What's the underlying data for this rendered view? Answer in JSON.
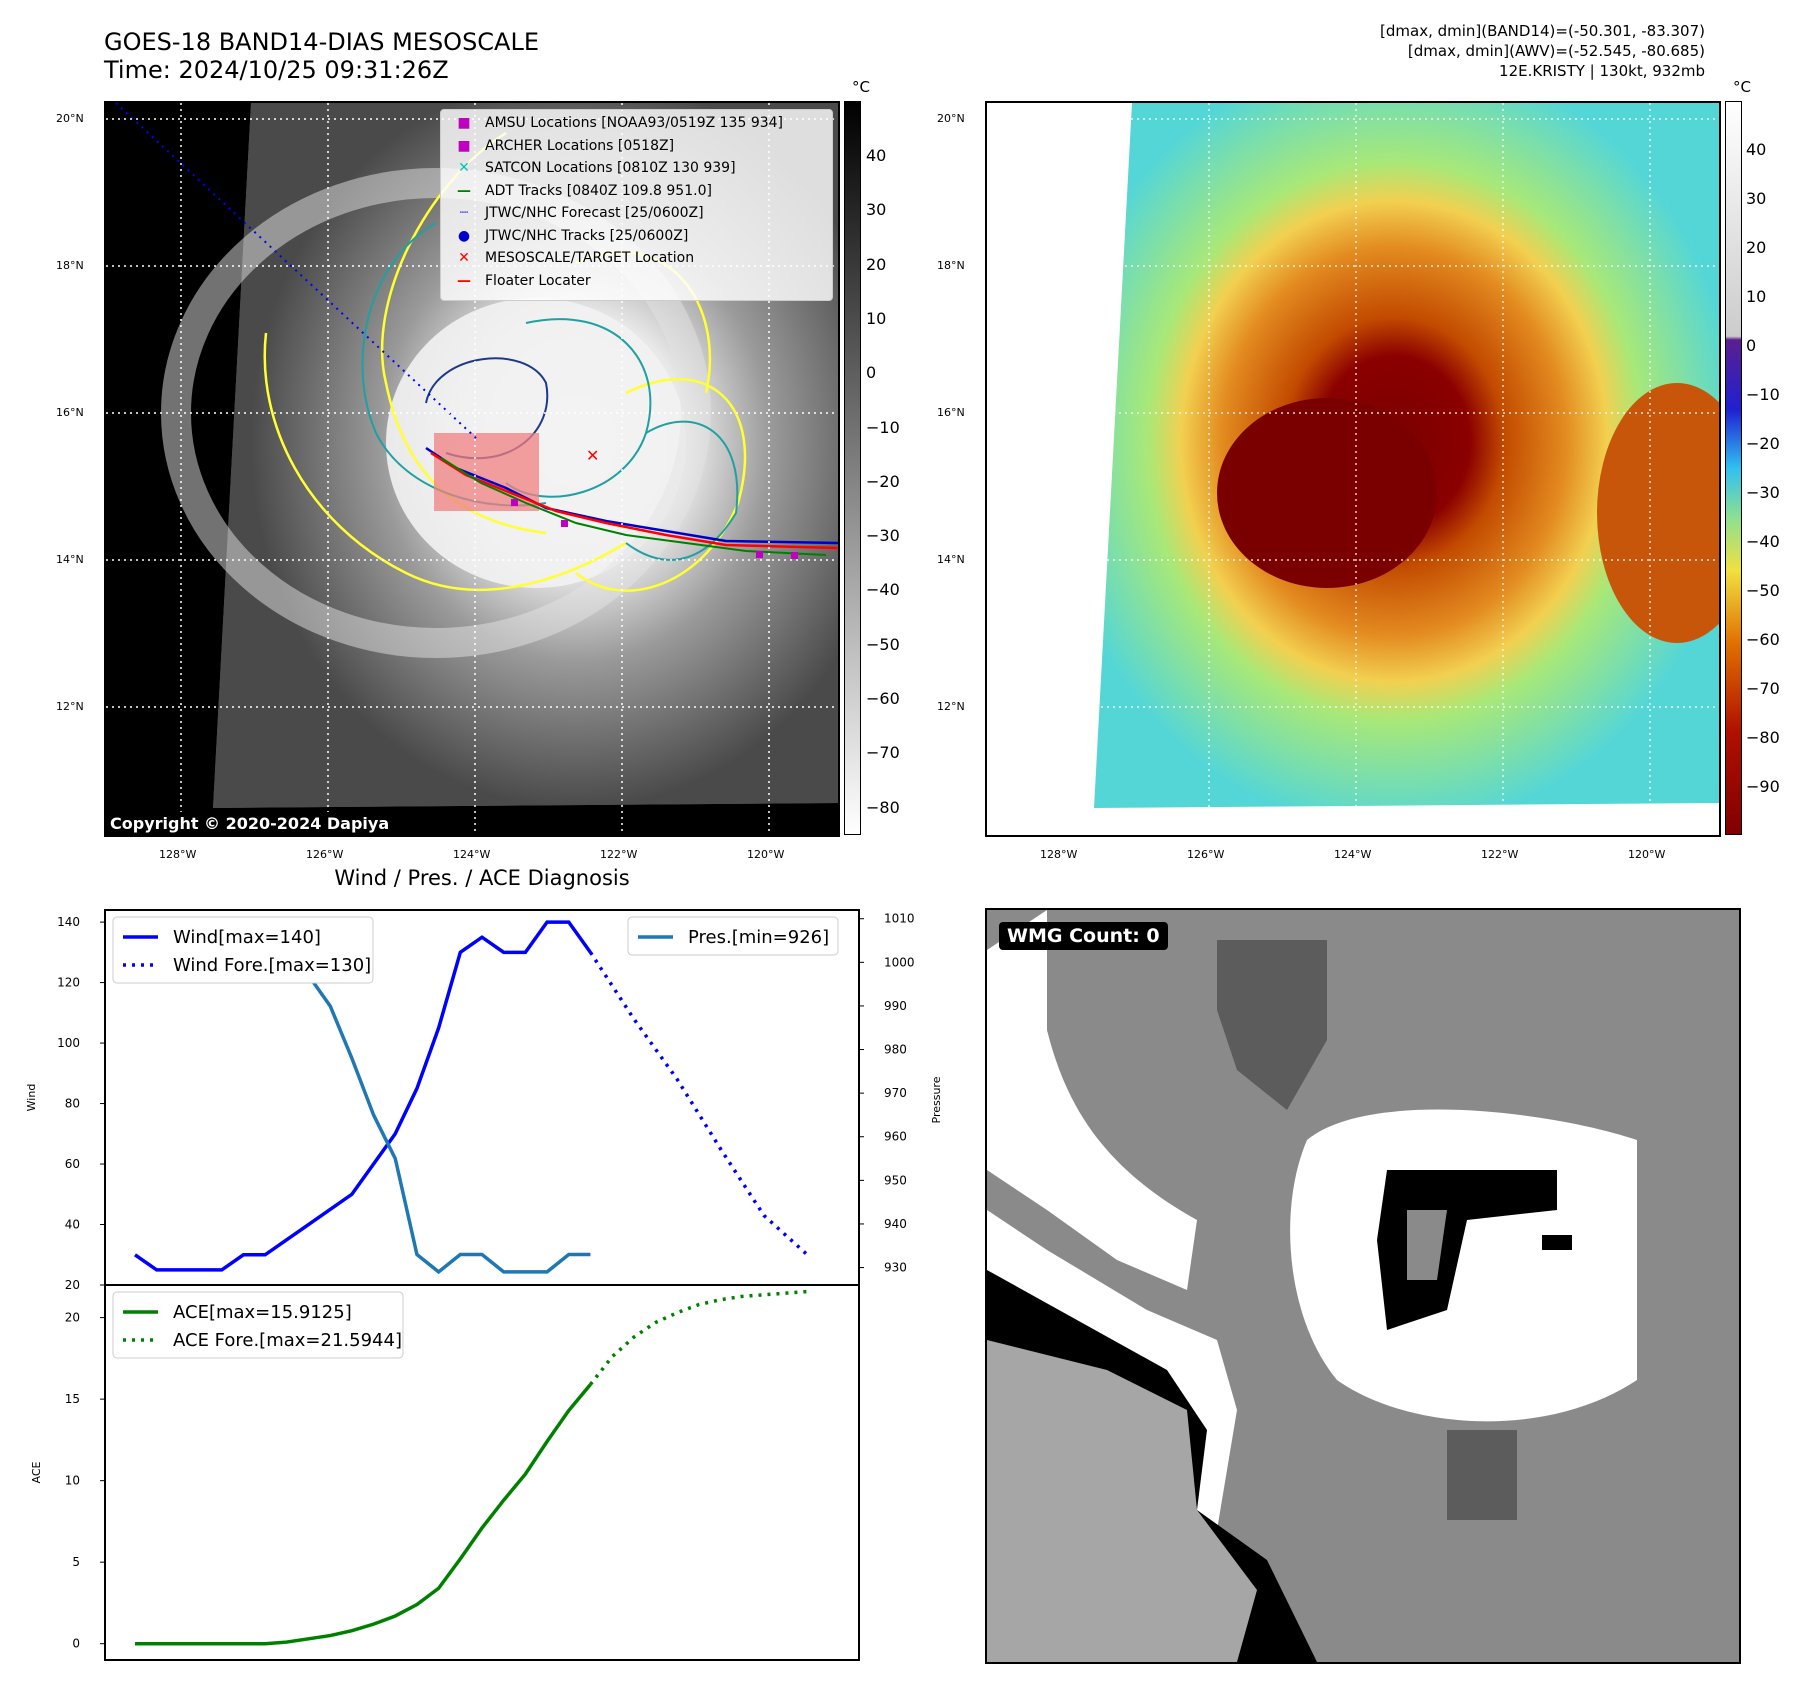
{
  "header": {
    "title_line1": "GOES-18 BAND14-DIAS MESOSCALE",
    "title_line2": "Time: 2024/10/25 09:31:26Z",
    "right_line1": "[dmax, dmin](BAND14)=(-50.301, -83.307)",
    "right_line2": "[dmax, dmin](AWV)=(-52.545, -80.685)",
    "right_line3": "12E.KRISTY | 130kt, 932mb"
  },
  "map": {
    "lat_labels": [
      "20°N",
      "18°N",
      "16°N",
      "14°N",
      "12°N"
    ],
    "lon_labels": [
      "128°W",
      "126°W",
      "124°W",
      "122°W",
      "120°W"
    ],
    "copyright": "Copyright © 2020-2024 Dapiya",
    "legend": [
      "AMSU Locations [NOAA93/0519Z 135 934]",
      "ARCHER Locations [0518Z]",
      "SATCON Locations [0810Z 130 939]",
      "ADT Tracks [0840Z 109.8 951.0]",
      "JTWC/NHC Forecast [25/0600Z]",
      "JTWC/NHC Tracks [25/0600Z]",
      "MESOSCALE/TARGET Location",
      "Floater Locater"
    ],
    "legend_colors": [
      "#c000c0",
      "#c000c0",
      "#00c0c0",
      "#008000",
      "#0000ff",
      "#0000cc",
      "#ff0000",
      "#ff0000"
    ],
    "colorbar_gray": {
      "unit": "°C",
      "ticks": [
        "40",
        "30",
        "20",
        "10",
        "0",
        "−10",
        "−20",
        "−30",
        "−40",
        "−50",
        "−60",
        "−70",
        "−80"
      ]
    },
    "colorbar_color": {
      "unit": "°C",
      "ticks": [
        "40",
        "30",
        "20",
        "10",
        "0",
        "−10",
        "−20",
        "−30",
        "−40",
        "−50",
        "−60",
        "−70",
        "−80",
        "−90"
      ]
    }
  },
  "chart_data": [
    {
      "type": "line",
      "title": "Wind / Pres. / ACE Diagnosis",
      "ylabel": "Wind",
      "ylabel2": "Pressure",
      "ylim": [
        20,
        144
      ],
      "y2lim": [
        926,
        1012
      ],
      "yticks": [
        20,
        40,
        60,
        80,
        100,
        120,
        140
      ],
      "y2ticks": [
        930,
        940,
        950,
        960,
        970,
        980,
        990,
        1000,
        1010
      ],
      "x": [
        0,
        1,
        2,
        3,
        4,
        5,
        6,
        7,
        8,
        9,
        10,
        11,
        12,
        13,
        14,
        15,
        16,
        17,
        18,
        19,
        20,
        21,
        22,
        23,
        24,
        25,
        26,
        27,
        28,
        29,
        30,
        31
      ],
      "series": [
        {
          "name": "Wind[max=140]",
          "color": "#0000ff",
          "style": "solid",
          "x": [
            0,
            1,
            2,
            3,
            4,
            5,
            6,
            8,
            10,
            11,
            12,
            13,
            14,
            15,
            16,
            17,
            18,
            19,
            20,
            21
          ],
          "values": [
            30,
            25,
            25,
            25,
            25,
            30,
            30,
            40,
            50,
            60,
            70,
            85,
            105,
            130,
            135,
            130,
            130,
            140,
            140,
            130
          ]
        },
        {
          "name": "Wind Fore.[max=130]",
          "color": "#0000ff",
          "style": "dotted",
          "x": [
            21,
            23,
            25,
            27,
            29,
            31
          ],
          "values": [
            130,
            108,
            88,
            65,
            43,
            30
          ]
        },
        {
          "name": "Pres.[min=926]",
          "color": "#1f77b4",
          "style": "solid",
          "axis": "right",
          "x": [
            0,
            1,
            2,
            3,
            4,
            5,
            6,
            7,
            8,
            9,
            10,
            11,
            12,
            13,
            14,
            15,
            16,
            17,
            18,
            19,
            20,
            21
          ],
          "values": [
            1006,
            1006,
            1007,
            1007,
            1005,
            1005,
            1003,
            1001,
            997,
            990,
            978,
            965,
            955,
            933,
            929,
            933,
            933,
            929,
            929,
            929,
            933,
            933
          ]
        }
      ]
    },
    {
      "type": "line",
      "ylabel": "ACE",
      "ylim": [
        -1,
        22
      ],
      "yticks": [
        0,
        5,
        10,
        15,
        20
      ],
      "series": [
        {
          "name": "ACE[max=15.9125]",
          "color": "#008000",
          "style": "solid",
          "x": [
            0,
            1,
            2,
            3,
            4,
            5,
            6,
            7,
            8,
            9,
            10,
            11,
            12,
            13,
            14,
            15,
            16,
            17,
            18,
            19,
            20,
            21
          ],
          "values": [
            0,
            0,
            0,
            0,
            0,
            0,
            0,
            0.1,
            0.3,
            0.5,
            0.8,
            1.2,
            1.7,
            2.4,
            3.4,
            5.2,
            7.1,
            8.8,
            10.4,
            12.4,
            14.3,
            15.9
          ]
        },
        {
          "name": "ACE Fore.[max=21.5944]",
          "color": "#008000",
          "style": "dotted",
          "x": [
            21,
            22,
            23,
            24,
            25,
            26,
            27,
            28,
            29,
            30,
            31
          ],
          "values": [
            15.9,
            17.6,
            18.8,
            19.7,
            20.3,
            20.8,
            21.1,
            21.3,
            21.4,
            21.5,
            21.6
          ]
        }
      ]
    }
  ],
  "wmg": {
    "label": "WMG Count: 0"
  }
}
